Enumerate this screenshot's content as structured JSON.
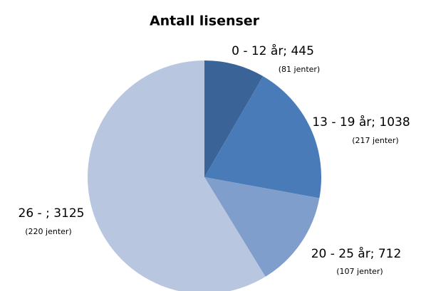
{
  "chart_data": {
    "type": "pie",
    "title": "Antall lisenser",
    "values": [
      445,
      1038,
      712,
      3125
    ],
    "value_labels": [
      "0 - 12 år; 445",
      "13 - 19 år; 1038",
      "20 - 25 år; 712",
      "26 - ; 3125"
    ],
    "annotations": [
      "(81 jenter)",
      "(217 jenter)",
      "(107 jenter)",
      "(220 jenter)"
    ],
    "colors": [
      "#3a6497",
      "#4a7bb9",
      "#7f9ecc",
      "#b8c6e0"
    ]
  }
}
